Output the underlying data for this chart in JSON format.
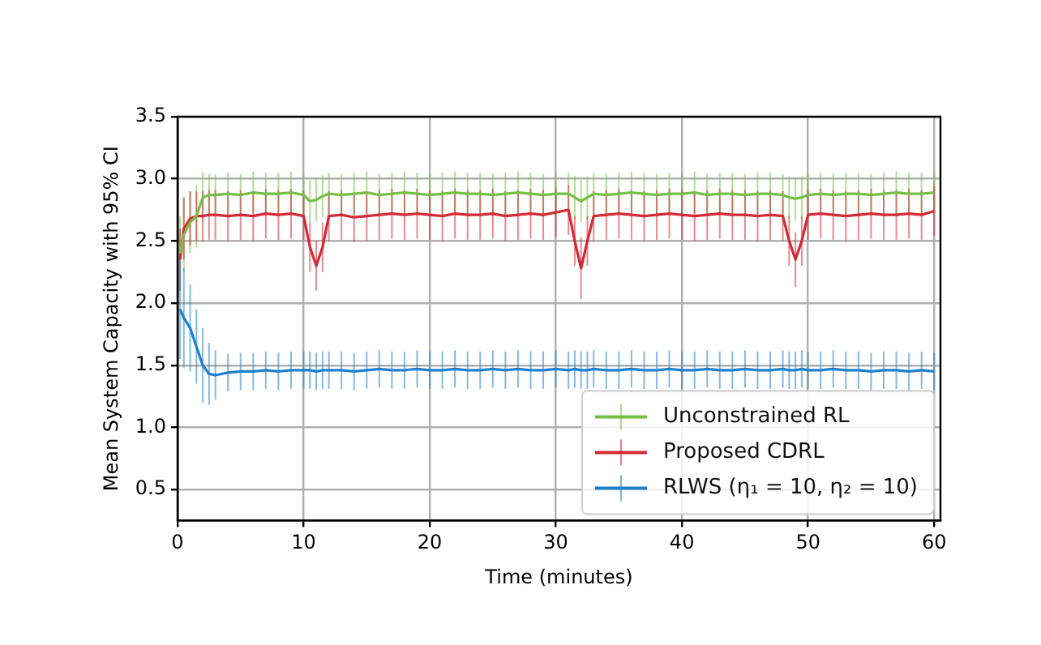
{
  "chart_data": {
    "type": "line",
    "xlabel": "Time (minutes)",
    "ylabel": "Mean System Capacity with 95% CI",
    "x": [
      0.2,
      0.5,
      1,
      1.5,
      2,
      2.5,
      3,
      4,
      5,
      6,
      7,
      8,
      9,
      10,
      10.5,
      11,
      11.5,
      12,
      13,
      14,
      15,
      16,
      17,
      18,
      19,
      20,
      21,
      22,
      23,
      24,
      25,
      26,
      27,
      28,
      29,
      30,
      31,
      31.5,
      32,
      32.5,
      33,
      34,
      35,
      36,
      37,
      38,
      39,
      40,
      41,
      42,
      43,
      44,
      45,
      46,
      47,
      48,
      48.5,
      49,
      49.5,
      50,
      51,
      52,
      53,
      54,
      55,
      56,
      57,
      58,
      59,
      60
    ],
    "series": [
      {
        "name": "Unconstrained RL",
        "color": "#74bf44",
        "values": [
          2.4,
          2.55,
          2.65,
          2.7,
          2.85,
          2.87,
          2.87,
          2.88,
          2.87,
          2.89,
          2.88,
          2.88,
          2.89,
          2.87,
          2.82,
          2.83,
          2.86,
          2.88,
          2.87,
          2.88,
          2.89,
          2.87,
          2.88,
          2.89,
          2.88,
          2.87,
          2.88,
          2.89,
          2.88,
          2.88,
          2.87,
          2.88,
          2.89,
          2.88,
          2.87,
          2.88,
          2.88,
          2.85,
          2.82,
          2.85,
          2.88,
          2.87,
          2.88,
          2.89,
          2.88,
          2.87,
          2.88,
          2.88,
          2.89,
          2.87,
          2.88,
          2.88,
          2.87,
          2.88,
          2.88,
          2.87,
          2.85,
          2.84,
          2.85,
          2.87,
          2.88,
          2.87,
          2.88,
          2.88,
          2.87,
          2.88,
          2.89,
          2.88,
          2.88,
          2.89
        ],
        "errors": [
          0.3,
          0.3,
          0.25,
          0.25,
          0.2,
          0.17,
          0.17,
          0.17,
          0.17,
          0.17,
          0.17,
          0.17,
          0.17,
          0.17,
          0.17,
          0.17,
          0.17,
          0.17,
          0.17,
          0.17,
          0.17,
          0.17,
          0.17,
          0.17,
          0.17,
          0.17,
          0.17,
          0.17,
          0.17,
          0.17,
          0.17,
          0.17,
          0.17,
          0.17,
          0.17,
          0.17,
          0.17,
          0.17,
          0.17,
          0.17,
          0.17,
          0.17,
          0.17,
          0.17,
          0.17,
          0.17,
          0.17,
          0.17,
          0.17,
          0.17,
          0.17,
          0.17,
          0.17,
          0.17,
          0.17,
          0.17,
          0.17,
          0.17,
          0.17,
          0.17,
          0.17,
          0.17,
          0.17,
          0.17,
          0.17,
          0.17,
          0.17,
          0.17,
          0.17,
          0.17
        ]
      },
      {
        "name": "Proposed CDRL",
        "color": "#d42a35",
        "values": [
          2.35,
          2.6,
          2.68,
          2.7,
          2.7,
          2.71,
          2.71,
          2.7,
          2.71,
          2.7,
          2.72,
          2.71,
          2.72,
          2.7,
          2.45,
          2.3,
          2.45,
          2.7,
          2.71,
          2.69,
          2.7,
          2.71,
          2.72,
          2.71,
          2.72,
          2.71,
          2.7,
          2.72,
          2.71,
          2.71,
          2.72,
          2.7,
          2.71,
          2.72,
          2.71,
          2.73,
          2.75,
          2.5,
          2.28,
          2.5,
          2.7,
          2.71,
          2.72,
          2.71,
          2.7,
          2.71,
          2.72,
          2.71,
          2.7,
          2.71,
          2.72,
          2.71,
          2.71,
          2.7,
          2.71,
          2.7,
          2.5,
          2.35,
          2.5,
          2.71,
          2.72,
          2.71,
          2.7,
          2.71,
          2.72,
          2.71,
          2.71,
          2.72,
          2.71,
          2.74
        ],
        "errors": [
          0.25,
          0.25,
          0.22,
          0.2,
          0.2,
          0.2,
          0.2,
          0.2,
          0.2,
          0.2,
          0.2,
          0.2,
          0.2,
          0.2,
          0.2,
          0.2,
          0.2,
          0.2,
          0.2,
          0.2,
          0.2,
          0.2,
          0.2,
          0.2,
          0.2,
          0.2,
          0.2,
          0.2,
          0.2,
          0.2,
          0.2,
          0.2,
          0.2,
          0.2,
          0.2,
          0.2,
          0.2,
          0.2,
          0.25,
          0.2,
          0.2,
          0.2,
          0.2,
          0.2,
          0.2,
          0.2,
          0.2,
          0.2,
          0.2,
          0.2,
          0.2,
          0.2,
          0.2,
          0.2,
          0.2,
          0.2,
          0.2,
          0.22,
          0.2,
          0.2,
          0.2,
          0.2,
          0.2,
          0.2,
          0.2,
          0.2,
          0.2,
          0.2,
          0.2,
          0.2
        ]
      },
      {
        "name": "RLWS (η₁ = 10, η₂ = 10)",
        "color": "#1f80cc",
        "values": [
          1.95,
          1.88,
          1.8,
          1.65,
          1.5,
          1.43,
          1.42,
          1.44,
          1.45,
          1.45,
          1.46,
          1.45,
          1.46,
          1.46,
          1.46,
          1.45,
          1.46,
          1.46,
          1.46,
          1.45,
          1.46,
          1.47,
          1.46,
          1.46,
          1.47,
          1.46,
          1.46,
          1.47,
          1.46,
          1.46,
          1.47,
          1.46,
          1.47,
          1.46,
          1.46,
          1.47,
          1.46,
          1.47,
          1.46,
          1.46,
          1.47,
          1.46,
          1.46,
          1.47,
          1.46,
          1.46,
          1.47,
          1.46,
          1.46,
          1.47,
          1.46,
          1.46,
          1.47,
          1.46,
          1.46,
          1.47,
          1.46,
          1.46,
          1.47,
          1.46,
          1.46,
          1.47,
          1.46,
          1.46,
          1.45,
          1.46,
          1.46,
          1.45,
          1.46,
          1.45
        ],
        "errors": [
          0.4,
          0.4,
          0.35,
          0.3,
          0.3,
          0.25,
          0.2,
          0.15,
          0.15,
          0.15,
          0.15,
          0.15,
          0.15,
          0.15,
          0.15,
          0.15,
          0.15,
          0.15,
          0.15,
          0.15,
          0.15,
          0.15,
          0.15,
          0.15,
          0.15,
          0.15,
          0.15,
          0.15,
          0.15,
          0.15,
          0.15,
          0.15,
          0.15,
          0.15,
          0.15,
          0.15,
          0.15,
          0.15,
          0.15,
          0.15,
          0.15,
          0.15,
          0.15,
          0.15,
          0.15,
          0.15,
          0.15,
          0.15,
          0.15,
          0.15,
          0.15,
          0.15,
          0.15,
          0.15,
          0.15,
          0.15,
          0.15,
          0.15,
          0.15,
          0.15,
          0.15,
          0.15,
          0.15,
          0.15,
          0.15,
          0.15,
          0.15,
          0.15,
          0.15,
          0.15
        ]
      }
    ],
    "xlim": [
      0,
      60.5
    ],
    "xticks": [
      0,
      10,
      20,
      30,
      40,
      50,
      60
    ],
    "ylim": [
      0.25,
      3.5
    ],
    "yticks": [
      0.5,
      {
        "value": 1,
        "label": "1.0"
      },
      1.5,
      {
        "value": 2,
        "label": "2.0"
      },
      2.5,
      {
        "value": 3,
        "label": "3.0"
      },
      3.5
    ],
    "grid": true,
    "legend": "bottom right",
    "marker": "none",
    "line_style": "solid"
  }
}
